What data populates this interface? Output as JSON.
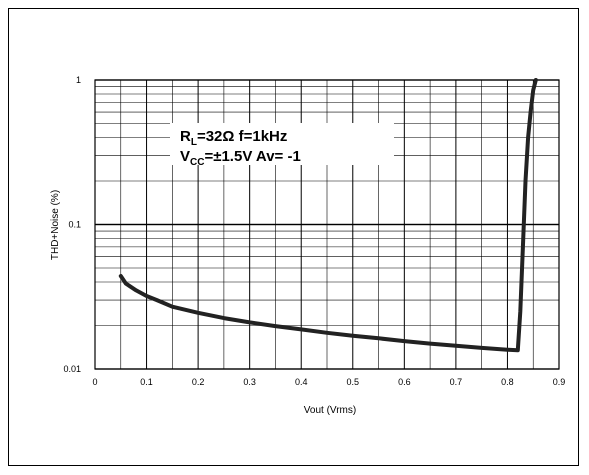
{
  "chart_data": {
    "type": "line",
    "title": "",
    "xlabel": "Vout (Vrms)",
    "ylabel": "THD+Noise (%)",
    "x_scale": "linear",
    "y_scale": "log",
    "xlim": [
      0,
      0.9
    ],
    "ylim": [
      0.01,
      1
    ],
    "x_ticks": [
      "0",
      "0.1",
      "0.2",
      "0.3",
      "0.4",
      "0.5",
      "0.6",
      "0.7",
      "0.8",
      "0.9"
    ],
    "y_ticks": [
      "0.01",
      "0.1",
      "1"
    ],
    "grid": true,
    "annotation": {
      "line1": {
        "main": "R",
        "sub": "L",
        "rest": "=32Ω  f=1kHz"
      },
      "line2": {
        "main": "V",
        "sub": "CC",
        "rest": "=±1.5V  Av= -1"
      }
    },
    "series": [
      {
        "name": "",
        "x": [
          0.05,
          0.06,
          0.08,
          0.1,
          0.12,
          0.15,
          0.2,
          0.25,
          0.3,
          0.35,
          0.4,
          0.45,
          0.5,
          0.55,
          0.6,
          0.65,
          0.7,
          0.75,
          0.8,
          0.82,
          0.825,
          0.83,
          0.835,
          0.84,
          0.845,
          0.85,
          0.855
        ],
        "y": [
          0.044,
          0.039,
          0.035,
          0.032,
          0.03,
          0.027,
          0.0245,
          0.0225,
          0.021,
          0.0198,
          0.0188,
          0.0178,
          0.017,
          0.0163,
          0.0156,
          0.015,
          0.0145,
          0.014,
          0.0136,
          0.0135,
          0.025,
          0.07,
          0.2,
          0.4,
          0.6,
          0.85,
          1.0
        ],
        "color": "#222222"
      }
    ]
  }
}
